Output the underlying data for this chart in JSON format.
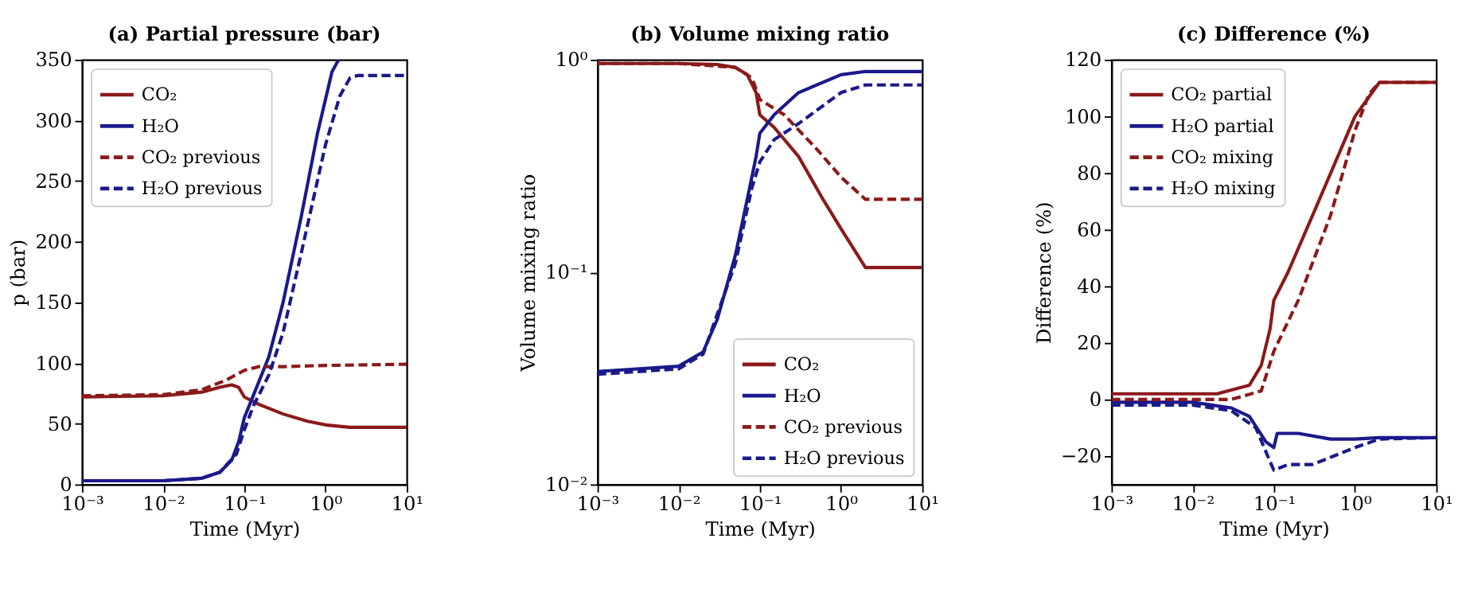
{
  "chart_data": [
    {
      "type": "line",
      "title": "(a) Partial pressure (bar)",
      "xlabel": "Time (Myr)",
      "ylabel": "p (bar)",
      "log": "x",
      "grid": false,
      "legend": "top left",
      "marker": "none",
      "xlim": [
        0.001,
        10
      ],
      "xticks": [
        {
          "value": 0.001,
          "label": "10⁻³"
        },
        {
          "value": 0.01,
          "label": "10⁻²"
        },
        {
          "value": 0.1,
          "label": "10⁻¹"
        },
        {
          "value": 1,
          "label": "10⁰"
        },
        {
          "value": 10,
          "label": "10¹"
        }
      ],
      "ylim": [
        0,
        350
      ],
      "yticks": [
        0,
        50,
        100,
        150,
        200,
        250,
        300,
        350
      ],
      "series": [
        {
          "name": "CO₂",
          "color": "#8b1a1a",
          "line_style": "solid",
          "x": [
            0.001,
            0.01,
            0.03,
            0.05,
            0.07,
            0.085,
            0.1,
            0.15,
            0.3,
            0.6,
            1,
            2,
            10
          ],
          "values": [
            72,
            73,
            76,
            80,
            82,
            80,
            72,
            66,
            58,
            52,
            49,
            47,
            47
          ]
        },
        {
          "name": "H₂O",
          "color": "#1a1a8b",
          "line_style": "solid",
          "x": [
            0.001,
            0.01,
            0.03,
            0.05,
            0.07,
            0.085,
            0.1,
            0.12,
            0.2,
            0.3,
            0.5,
            0.8,
            1.2,
            1.45
          ],
          "values": [
            3,
            3,
            5,
            10,
            20,
            35,
            55,
            68,
            105,
            150,
            220,
            290,
            340,
            350
          ]
        },
        {
          "name": "CO₂ previous",
          "color": "#8b1a1a",
          "line_style": "dashed",
          "x": [
            0.001,
            0.01,
            0.03,
            0.06,
            0.1,
            0.15,
            0.3,
            1,
            10
          ],
          "values": [
            73,
            74,
            78,
            86,
            94,
            97,
            97,
            98,
            99
          ]
        },
        {
          "name": "H₂O previous",
          "color": "#1a1a8b",
          "line_style": "dashed",
          "x": [
            0.001,
            0.01,
            0.03,
            0.05,
            0.08,
            0.1,
            0.13,
            0.2,
            0.3,
            0.5,
            1,
            1.5,
            2,
            2.5,
            10
          ],
          "values": [
            3,
            3,
            5,
            10,
            25,
            45,
            65,
            90,
            125,
            190,
            280,
            320,
            335,
            337,
            337
          ]
        }
      ]
    },
    {
      "type": "line",
      "title": "(b) Volume mixing ratio",
      "xlabel": "Time (Myr)",
      "ylabel": "Volume mixing ratio",
      "log": "xy",
      "grid": false,
      "legend": "bottom right",
      "marker": "none",
      "xlim": [
        0.001,
        10
      ],
      "xticks": [
        {
          "value": 0.001,
          "label": "10⁻³"
        },
        {
          "value": 0.01,
          "label": "10⁻²"
        },
        {
          "value": 0.1,
          "label": "10⁻¹"
        },
        {
          "value": 1,
          "label": "10⁰"
        },
        {
          "value": 10,
          "label": "10¹"
        }
      ],
      "ylim": [
        0.01,
        1
      ],
      "yticks": [
        {
          "value": 0.01,
          "label": "10⁻²"
        },
        {
          "value": 0.1,
          "label": "10⁻¹"
        },
        {
          "value": 1,
          "label": "10⁰"
        }
      ],
      "series": [
        {
          "name": "CO₂",
          "color": "#8b1a1a",
          "line_style": "solid",
          "x": [
            0.001,
            0.01,
            0.03,
            0.05,
            0.07,
            0.09,
            0.1,
            0.15,
            0.3,
            0.6,
            1,
            2,
            10
          ],
          "values": [
            0.96,
            0.96,
            0.95,
            0.92,
            0.85,
            0.7,
            0.55,
            0.48,
            0.35,
            0.22,
            0.16,
            0.105,
            0.105
          ]
        },
        {
          "name": "H₂O",
          "color": "#1a1a8b",
          "line_style": "solid",
          "x": [
            0.001,
            0.01,
            0.02,
            0.03,
            0.05,
            0.07,
            0.09,
            0.1,
            0.15,
            0.3,
            1,
            2,
            10
          ],
          "values": [
            0.034,
            0.036,
            0.042,
            0.06,
            0.12,
            0.22,
            0.35,
            0.45,
            0.55,
            0.7,
            0.85,
            0.88,
            0.88
          ]
        },
        {
          "name": "CO₂ previous",
          "color": "#8b1a1a",
          "line_style": "dashed",
          "x": [
            0.001,
            0.01,
            0.05,
            0.08,
            0.1,
            0.2,
            0.5,
            1,
            2,
            10
          ],
          "values": [
            0.96,
            0.96,
            0.92,
            0.82,
            0.65,
            0.55,
            0.38,
            0.28,
            0.22,
            0.22
          ]
        },
        {
          "name": "H₂O previous",
          "color": "#1a1a8b",
          "line_style": "dashed",
          "x": [
            0.001,
            0.01,
            0.02,
            0.05,
            0.08,
            0.1,
            0.15,
            0.3,
            1,
            2,
            10
          ],
          "values": [
            0.033,
            0.035,
            0.041,
            0.11,
            0.25,
            0.33,
            0.42,
            0.5,
            0.7,
            0.76,
            0.76
          ]
        }
      ]
    },
    {
      "type": "line",
      "title": "(c) Difference (%)",
      "xlabel": "Time (Myr)",
      "ylabel": "Difference (%)",
      "log": "x",
      "grid": false,
      "legend": "top left",
      "marker": "none",
      "xlim": [
        0.001,
        10
      ],
      "xticks": [
        {
          "value": 0.001,
          "label": "10⁻³"
        },
        {
          "value": 0.01,
          "label": "10⁻²"
        },
        {
          "value": 0.1,
          "label": "10⁻¹"
        },
        {
          "value": 1,
          "label": "10⁰"
        },
        {
          "value": 10,
          "label": "10¹"
        }
      ],
      "ylim": [
        -30,
        120
      ],
      "yticks": [
        {
          "value": -20,
          "label": "−20"
        },
        0,
        20,
        40,
        60,
        80,
        100,
        120
      ],
      "series": [
        {
          "name": "CO₂ partial",
          "color": "#8b1a1a",
          "line_style": "solid",
          "x": [
            0.001,
            0.02,
            0.05,
            0.07,
            0.09,
            0.1,
            0.15,
            0.3,
            1,
            2,
            10
          ],
          "values": [
            2,
            2,
            5,
            12,
            25,
            35,
            45,
            65,
            100,
            112,
            112
          ]
        },
        {
          "name": "H₂O partial",
          "color": "#1a1a8b",
          "line_style": "solid",
          "x": [
            0.001,
            0.01,
            0.03,
            0.05,
            0.08,
            0.1,
            0.11,
            0.2,
            0.5,
            1,
            2,
            10
          ],
          "values": [
            -1,
            -1,
            -3,
            -6,
            -15,
            -17,
            -12,
            -12,
            -14,
            -14,
            -13.5,
            -13.5
          ]
        },
        {
          "name": "CO₂ mixing",
          "color": "#8b1a1a",
          "line_style": "dashed",
          "x": [
            0.001,
            0.03,
            0.07,
            0.1,
            0.2,
            0.5,
            1,
            1.5,
            2,
            10
          ],
          "values": [
            0,
            0,
            3,
            17,
            35,
            65,
            95,
            108,
            112,
            112
          ]
        },
        {
          "name": "H₂O mixing",
          "color": "#1a1a8b",
          "line_style": "dashed",
          "x": [
            0.001,
            0.01,
            0.03,
            0.06,
            0.09,
            0.1,
            0.15,
            0.3,
            1,
            2,
            10
          ],
          "values": [
            -2,
            -2,
            -4,
            -10,
            -22,
            -25,
            -23,
            -23,
            -17,
            -14,
            -13.5
          ]
        }
      ]
    }
  ]
}
